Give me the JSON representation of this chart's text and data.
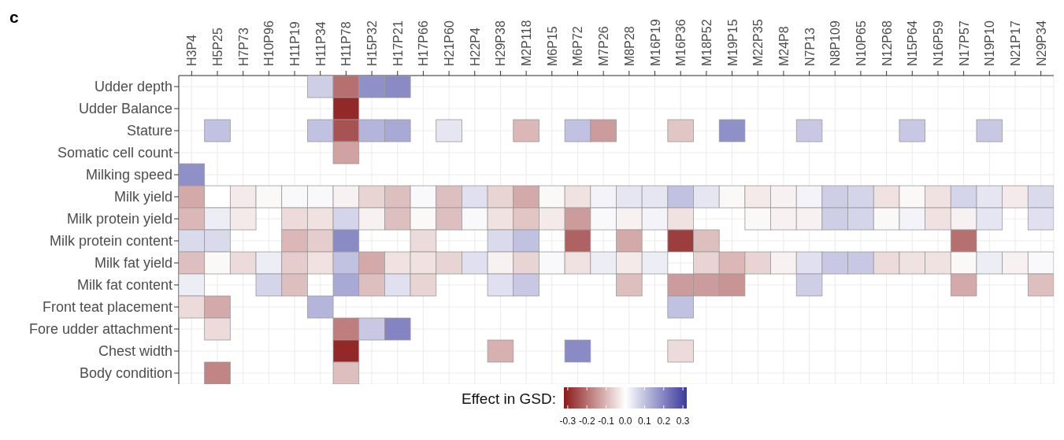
{
  "chart_data": {
    "type": "heatmap",
    "title": "c",
    "clabel": "Effect in GSD:",
    "categories": [
      "H3P4",
      "H5P25",
      "H7P73",
      "H10P96",
      "H11P19",
      "H11P34",
      "H11P78",
      "H15P32",
      "H17P21",
      "H17P66",
      "H21P60",
      "H22P4",
      "H29P38",
      "M2P118",
      "M6P15",
      "M6P72",
      "M7P26",
      "M8P28",
      "M16P19",
      "M16P36",
      "M18P52",
      "M19P15",
      "M22P35",
      "M24P8",
      "N7P13",
      "N8P109",
      "N10P65",
      "N12P68",
      "N15P64",
      "N16P59",
      "N17P57",
      "N19P10",
      "N21P17",
      "N29P34"
    ],
    "y_categories": [
      "Udder depth",
      "Udder Balance",
      "Stature",
      "Somatic cell count",
      "Milking speed",
      "Milk yield",
      "Milk protein yield",
      "Milk protein content",
      "Milk fat yield",
      "Milk fat content",
      "Front teat placement",
      "Fore udder attachment",
      "Chest width",
      "Body condition"
    ],
    "cells": [
      [
        null,
        null,
        null,
        null,
        null,
        0.08,
        -0.2,
        0.18,
        0.19,
        null,
        null,
        null,
        null,
        null,
        null,
        null,
        null,
        null,
        null,
        null,
        null,
        null,
        null,
        null,
        null,
        null,
        null,
        null,
        null,
        null,
        null,
        null,
        null,
        null
      ],
      [
        null,
        null,
        null,
        null,
        null,
        null,
        -0.3,
        null,
        null,
        null,
        null,
        null,
        null,
        null,
        null,
        null,
        null,
        null,
        null,
        null,
        null,
        null,
        null,
        null,
        null,
        null,
        null,
        null,
        null,
        null,
        null,
        null,
        null,
        null
      ],
      [
        null,
        0.1,
        null,
        null,
        null,
        0.1,
        -0.24,
        0.12,
        0.14,
        null,
        0.04,
        null,
        null,
        -0.1,
        null,
        0.1,
        -0.14,
        null,
        null,
        -0.08,
        null,
        0.18,
        null,
        null,
        0.09,
        null,
        null,
        null,
        0.09,
        null,
        null,
        0.09,
        null,
        null
      ],
      [
        null,
        null,
        null,
        null,
        null,
        null,
        -0.13,
        null,
        null,
        null,
        null,
        null,
        null,
        null,
        null,
        null,
        null,
        null,
        null,
        null,
        null,
        null,
        null,
        null,
        null,
        null,
        null,
        null,
        null,
        null,
        null,
        null,
        null,
        null
      ],
      [
        0.18,
        null,
        null,
        null,
        null,
        null,
        null,
        null,
        null,
        null,
        null,
        null,
        null,
        null,
        null,
        null,
        null,
        null,
        null,
        null,
        null,
        null,
        null,
        null,
        null,
        null,
        null,
        null,
        null,
        null,
        null,
        null,
        null,
        null
      ],
      [
        -0.12,
        0.0,
        -0.03,
        -0.01,
        0.01,
        0.01,
        -0.02,
        -0.06,
        -0.09,
        0.01,
        -0.09,
        0.05,
        -0.06,
        -0.12,
        -0.01,
        -0.04,
        0.02,
        0.04,
        0.04,
        0.1,
        0.04,
        -0.01,
        -0.03,
        -0.02,
        0.02,
        0.08,
        0.07,
        -0.04,
        -0.01,
        -0.04,
        0.07,
        0.04,
        -0.03,
        0.06
      ],
      [
        -0.1,
        0.03,
        -0.03,
        null,
        -0.05,
        -0.04,
        0.07,
        -0.02,
        -0.09,
        -0.01,
        -0.09,
        0.01,
        -0.04,
        -0.08,
        -0.03,
        -0.14,
        0.01,
        -0.02,
        0.02,
        -0.04,
        null,
        null,
        -0.01,
        -0.02,
        -0.02,
        0.08,
        0.07,
        -0.01,
        0.02,
        -0.04,
        -0.02,
        0.04,
        null,
        0.05
      ],
      [
        0.06,
        0.06,
        null,
        null,
        -0.1,
        -0.07,
        0.19,
        null,
        null,
        -0.05,
        null,
        null,
        0.06,
        0.1,
        null,
        -0.22,
        null,
        -0.12,
        null,
        -0.27,
        -0.09,
        null,
        null,
        null,
        null,
        null,
        null,
        null,
        null,
        null,
        -0.2,
        null,
        null,
        null
      ],
      [
        -0.09,
        -0.01,
        -0.05,
        0.03,
        -0.07,
        -0.04,
        0.1,
        -0.12,
        -0.04,
        -0.04,
        -0.06,
        0.05,
        -0.02,
        -0.06,
        0.01,
        -0.04,
        0.03,
        -0.03,
        0.03,
        null,
        -0.06,
        -0.1,
        -0.06,
        -0.02,
        0.05,
        0.09,
        0.09,
        -0.05,
        -0.04,
        -0.04,
        -0.01,
        0.03,
        -0.02,
        0.01
      ],
      [
        0.03,
        null,
        null,
        0.07,
        -0.09,
        null,
        0.14,
        -0.09,
        0.05,
        -0.06,
        null,
        null,
        0.05,
        0.09,
        null,
        null,
        null,
        -0.09,
        null,
        -0.14,
        -0.14,
        -0.15,
        null,
        null,
        0.08,
        null,
        null,
        null,
        null,
        null,
        -0.12,
        null,
        null,
        -0.09
      ],
      [
        -0.05,
        -0.12,
        null,
        null,
        null,
        0.12,
        null,
        null,
        null,
        null,
        null,
        null,
        null,
        null,
        null,
        null,
        null,
        null,
        null,
        0.1,
        null,
        null,
        null,
        null,
        null,
        null,
        null,
        null,
        null,
        null,
        null,
        null,
        null,
        null
      ],
      [
        null,
        -0.05,
        null,
        null,
        null,
        null,
        -0.18,
        0.09,
        0.2,
        null,
        null,
        null,
        null,
        null,
        null,
        null,
        null,
        null,
        null,
        null,
        null,
        null,
        null,
        null,
        null,
        null,
        null,
        null,
        null,
        null,
        null,
        null,
        null,
        null
      ],
      [
        null,
        null,
        null,
        null,
        null,
        null,
        -0.3,
        null,
        null,
        null,
        null,
        null,
        -0.11,
        null,
        null,
        0.19,
        null,
        null,
        null,
        -0.05,
        null,
        null,
        null,
        null,
        null,
        null,
        null,
        null,
        null,
        null,
        null,
        null,
        null,
        null
      ],
      [
        null,
        -0.17,
        null,
        null,
        null,
        null,
        -0.09,
        null,
        null,
        null,
        null,
        null,
        null,
        null,
        null,
        null,
        null,
        null,
        null,
        null,
        null,
        null,
        null,
        null,
        null,
        null,
        null,
        null,
        null,
        null,
        null,
        null,
        null,
        null
      ]
    ],
    "clim": [
      -0.32,
      0.32
    ],
    "cticks": [
      {
        "value": -0.3,
        "label": "-0.3"
      },
      {
        "value": -0.2,
        "label": "-0.2"
      },
      {
        "value": -0.1,
        "label": "-0.1"
      },
      {
        "value": 0,
        "label": "0.0"
      },
      {
        "value": 0.1,
        "label": "0.1"
      },
      {
        "value": 0.2,
        "label": "0.2"
      },
      {
        "value": 0.3,
        "label": "0.3"
      }
    ],
    "grid": true
  }
}
